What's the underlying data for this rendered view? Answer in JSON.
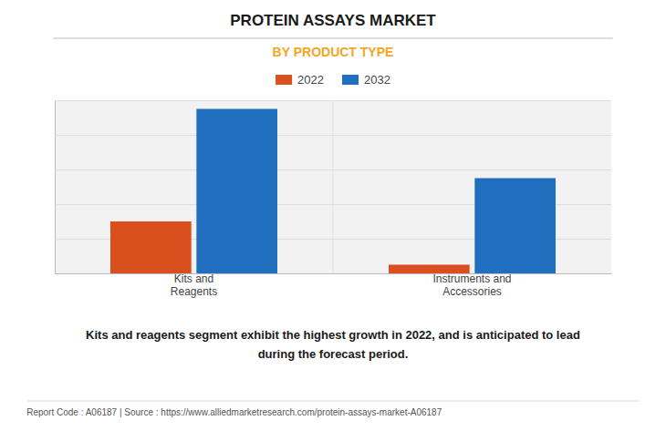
{
  "chart_data": {
    "type": "bar",
    "title": "PROTEIN ASSAYS MARKET",
    "subtitle": "BY PRODUCT TYPE",
    "categories": [
      "Kits and\nReagents",
      "Instruments and\nAccessories"
    ],
    "series": [
      {
        "name": "2022",
        "color": "#d94f1e",
        "values": [
          30,
          5
        ]
      },
      {
        "name": "2032",
        "color": "#1f6fbe",
        "values": [
          95,
          55
        ]
      }
    ],
    "ylim": [
      0,
      100
    ],
    "yticks": [
      0,
      20,
      40,
      60,
      80,
      100
    ],
    "grid": true,
    "legend": "top",
    "tick_labels": "x",
    "annotations": [
      "Kits and reagents segment exhibit the highest growth in 2022, and is anticipated to lead\nduring the forecast period.",
      "Report Code : A06187  |  Source : https://www.alliedmarketresearch.com/protein-assays-market-A06187"
    ]
  }
}
